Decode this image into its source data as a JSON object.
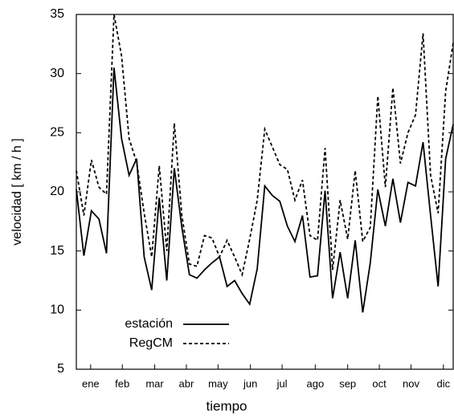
{
  "chart_data": {
    "type": "line",
    "x": [
      0,
      1,
      2,
      3,
      4,
      5,
      6,
      7,
      8,
      9,
      10,
      11,
      12,
      13,
      14,
      15,
      16,
      17,
      18,
      19,
      20,
      21,
      22,
      23,
      24,
      25,
      26,
      27,
      28,
      29,
      30,
      31,
      32,
      33,
      34,
      35,
      36,
      37,
      38,
      39,
      40,
      41,
      42,
      43,
      44,
      45,
      46,
      47,
      48,
      49,
      50
    ],
    "series": [
      {
        "name": "estación",
        "color": "#000000",
        "dash": "none",
        "values": [
          20.2,
          14.6,
          18.4,
          17.7,
          14.8,
          30.5,
          24.5,
          21.4,
          22.8,
          14.5,
          11.7,
          19.5,
          12.5,
          22.0,
          17.0,
          13.0,
          12.7,
          13.4,
          14.0,
          14.5,
          12.0,
          12.5,
          11.4,
          10.5,
          13.5,
          20.5,
          19.7,
          19.2,
          17.1,
          15.8,
          18.0,
          12.8,
          12.9,
          20.1,
          11.0,
          14.9,
          11.0,
          15.9,
          9.8,
          14.0,
          20.2,
          17.1,
          21.1,
          17.4,
          20.8,
          20.5,
          24.2,
          18.0,
          12.0,
          22.8,
          25.7
        ]
      },
      {
        "name": "RegCM",
        "color": "#000000",
        "dash": "4,3",
        "values": [
          21.8,
          18.0,
          22.7,
          20.4,
          19.8,
          35.0,
          31.5,
          24.5,
          22.5,
          18.2,
          14.5,
          22.2,
          15.0,
          25.8,
          18.0,
          13.9,
          13.7,
          16.3,
          16.1,
          14.5,
          15.9,
          14.5,
          13.0,
          16.0,
          19.3,
          25.3,
          23.8,
          22.3,
          21.9,
          19.3,
          21.0,
          16.3,
          15.9,
          23.7,
          13.4,
          19.3,
          16.0,
          21.8,
          15.8,
          17.0,
          28.1,
          20.4,
          28.8,
          22.4,
          25.0,
          26.5,
          33.4,
          21.4,
          18.2,
          28.5,
          32.6
        ]
      }
    ],
    "xlim": [
      0,
      50
    ],
    "xticks": [
      {
        "value": 1.9,
        "label": "ene"
      },
      {
        "value": 6.1,
        "label": "feb"
      },
      {
        "value": 10.4,
        "label": "mar"
      },
      {
        "value": 14.6,
        "label": "abr"
      },
      {
        "value": 18.8,
        "label": "may"
      },
      {
        "value": 23.1,
        "label": "jun"
      },
      {
        "value": 27.3,
        "label": "jul"
      },
      {
        "value": 31.7,
        "label": "ago"
      },
      {
        "value": 36.0,
        "label": "sep"
      },
      {
        "value": 40.2,
        "label": "oct"
      },
      {
        "value": 44.4,
        "label": "nov"
      },
      {
        "value": 48.7,
        "label": "dic"
      }
    ],
    "ylim": [
      5,
      35
    ],
    "yticks": [
      5,
      10,
      15,
      20,
      25,
      30,
      35
    ],
    "xlabel": "tiempo",
    "ylabel": "velocidad [ km / h ]"
  }
}
